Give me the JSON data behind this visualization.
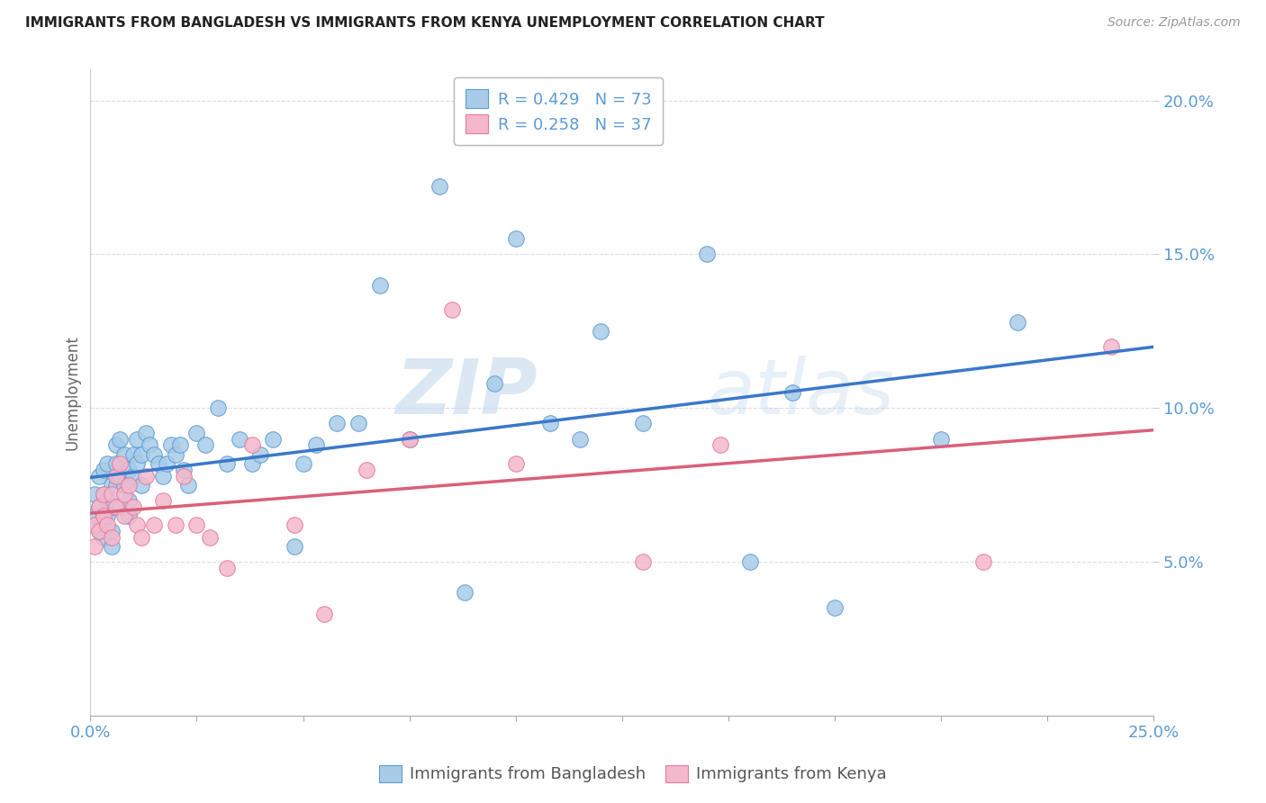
{
  "title": "IMMIGRANTS FROM BANGLADESH VS IMMIGRANTS FROM KENYA UNEMPLOYMENT CORRELATION CHART",
  "source": "Source: ZipAtlas.com",
  "ylabel": "Unemployment",
  "xlim": [
    0.0,
    0.25
  ],
  "ylim": [
    0.0,
    0.21
  ],
  "xticks": [
    0.0,
    0.025,
    0.05,
    0.075,
    0.1,
    0.125,
    0.15,
    0.175,
    0.2,
    0.225,
    0.25
  ],
  "xtick_labels": [
    "0.0%",
    "",
    "",
    "",
    "",
    "",
    "",
    "",
    "",
    "",
    "25.0%"
  ],
  "yticks": [
    0.05,
    0.1,
    0.15,
    0.2
  ],
  "ytick_labels": [
    "5.0%",
    "10.0%",
    "15.0%",
    "20.0%"
  ],
  "legend_blue_R": "R = 0.429",
  "legend_blue_N": "N = 73",
  "legend_pink_R": "R = 0.258",
  "legend_pink_N": "N = 37",
  "color_blue_fill": "#a8cce8",
  "color_pink_fill": "#f4b8cc",
  "color_blue_edge": "#5b9bd5",
  "color_pink_edge": "#e8789a",
  "color_blue_line": "#3a78c9",
  "color_pink_line": "#d9607a",
  "watermark_zip": "ZIP",
  "watermark_atlas": "atlas",
  "blue_x": [
    0.001,
    0.001,
    0.002,
    0.002,
    0.002,
    0.003,
    0.003,
    0.003,
    0.003,
    0.004,
    0.004,
    0.004,
    0.005,
    0.005,
    0.005,
    0.005,
    0.006,
    0.006,
    0.006,
    0.007,
    0.007,
    0.007,
    0.008,
    0.008,
    0.009,
    0.009,
    0.009,
    0.01,
    0.01,
    0.011,
    0.011,
    0.012,
    0.012,
    0.013,
    0.014,
    0.015,
    0.016,
    0.017,
    0.018,
    0.019,
    0.02,
    0.021,
    0.022,
    0.023,
    0.025,
    0.027,
    0.03,
    0.032,
    0.035,
    0.038,
    0.04,
    0.043,
    0.048,
    0.05,
    0.053,
    0.058,
    0.063,
    0.068,
    0.075,
    0.082,
    0.088,
    0.095,
    0.1,
    0.108,
    0.115,
    0.12,
    0.13,
    0.145,
    0.155,
    0.165,
    0.175,
    0.2,
    0.218
  ],
  "blue_y": [
    0.065,
    0.072,
    0.068,
    0.078,
    0.06,
    0.072,
    0.08,
    0.065,
    0.058,
    0.082,
    0.07,
    0.065,
    0.075,
    0.068,
    0.06,
    0.055,
    0.088,
    0.075,
    0.082,
    0.09,
    0.078,
    0.068,
    0.085,
    0.075,
    0.08,
    0.07,
    0.065,
    0.085,
    0.078,
    0.09,
    0.082,
    0.085,
    0.075,
    0.092,
    0.088,
    0.085,
    0.082,
    0.078,
    0.082,
    0.088,
    0.085,
    0.088,
    0.08,
    0.075,
    0.092,
    0.088,
    0.1,
    0.082,
    0.09,
    0.082,
    0.085,
    0.09,
    0.055,
    0.082,
    0.088,
    0.095,
    0.095,
    0.14,
    0.09,
    0.172,
    0.04,
    0.108,
    0.155,
    0.095,
    0.09,
    0.125,
    0.095,
    0.15,
    0.05,
    0.105,
    0.035,
    0.09,
    0.128
  ],
  "pink_x": [
    0.001,
    0.001,
    0.002,
    0.002,
    0.003,
    0.003,
    0.004,
    0.005,
    0.005,
    0.006,
    0.006,
    0.007,
    0.008,
    0.008,
    0.009,
    0.01,
    0.011,
    0.012,
    0.013,
    0.015,
    0.017,
    0.02,
    0.022,
    0.025,
    0.028,
    0.032,
    0.038,
    0.048,
    0.055,
    0.065,
    0.075,
    0.085,
    0.1,
    0.13,
    0.148,
    0.21,
    0.24
  ],
  "pink_y": [
    0.062,
    0.055,
    0.068,
    0.06,
    0.072,
    0.065,
    0.062,
    0.058,
    0.072,
    0.078,
    0.068,
    0.082,
    0.072,
    0.065,
    0.075,
    0.068,
    0.062,
    0.058,
    0.078,
    0.062,
    0.07,
    0.062,
    0.078,
    0.062,
    0.058,
    0.048,
    0.088,
    0.062,
    0.033,
    0.08,
    0.09,
    0.132,
    0.082,
    0.05,
    0.088,
    0.05,
    0.12
  ]
}
